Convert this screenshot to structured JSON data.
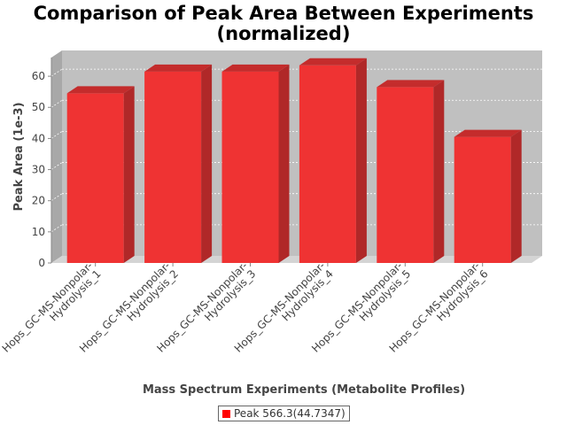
{
  "chart_data": {
    "type": "bar",
    "title_line1": "Comparison of Peak Area Between Experiments",
    "title_line2": "(normalized)",
    "xlabel": "Mass Spectrum Experiments (Metabolite Profiles)",
    "ylabel": "Peak Area (1e-3)",
    "ylim": [
      0,
      66
    ],
    "yticks": [
      0,
      10,
      20,
      30,
      40,
      50,
      60
    ],
    "grid": true,
    "legend_position": "bottom",
    "categories": [
      [
        "Hops_GC-MS-Nonpolar-",
        "Hydrolysis_1"
      ],
      [
        "Hops_GC-MS-Nonpolar-",
        "Hydrolysis_2"
      ],
      [
        "Hops_GC-MS-Nonpolar-",
        "Hydrolysis_3"
      ],
      [
        "Hops_GC-MS-Nonpolar-",
        "Hydrolysis_4"
      ],
      [
        "Hops_GC-MS-Nonpolar-",
        "Hydrolysis_5"
      ],
      [
        "Hops_GC-MS-Nonpolar-",
        "Hydrolysis_6"
      ]
    ],
    "series": [
      {
        "name": "Peak 566.3(44.7347)",
        "color": "#ff0000",
        "values": [
          54.5,
          61.5,
          61.5,
          63.5,
          56.5,
          40.5
        ]
      }
    ]
  }
}
